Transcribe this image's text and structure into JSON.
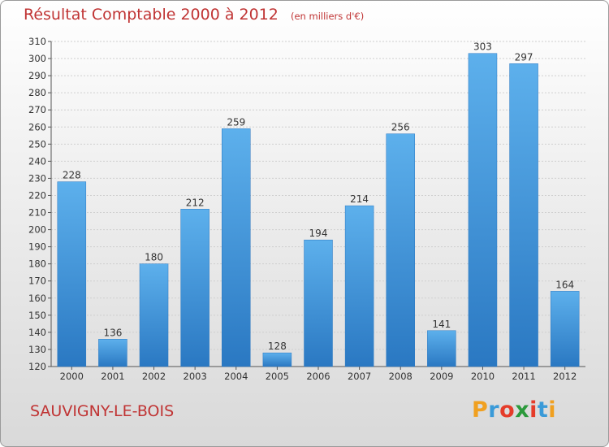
{
  "chart_data": {
    "type": "bar",
    "title": "Résultat Comptable 2000 à 2012",
    "unit_label": "(en milliers d'€)",
    "categories": [
      "2000",
      "2001",
      "2002",
      "2003",
      "2004",
      "2005",
      "2006",
      "2007",
      "2008",
      "2009",
      "2010",
      "2011",
      "2012"
    ],
    "values": [
      228,
      136,
      180,
      212,
      259,
      128,
      194,
      214,
      256,
      141,
      303,
      297,
      164
    ],
    "y_ticks": [
      120,
      130,
      140,
      150,
      160,
      170,
      180,
      190,
      200,
      210,
      220,
      230,
      240,
      250,
      260,
      270,
      280,
      290,
      300,
      310
    ],
    "ylim": [
      120,
      310
    ],
    "grid": true,
    "bar_color": "#3d8fd8",
    "bar_color_light": "#5db0ec",
    "bar_color_dark": "#2a78c2"
  },
  "commune": "SAUVIGNY-LE-BOIS",
  "logo": {
    "text": "Proxiti",
    "letters": [
      {
        "ch": "P",
        "color": "#f0a020"
      },
      {
        "ch": "r",
        "color": "#3a9ad8"
      },
      {
        "ch": "o",
        "color": "#e53c2a"
      },
      {
        "ch": "x",
        "color": "#2c9a3c"
      },
      {
        "ch": "i",
        "color": "#e53c2a"
      },
      {
        "ch": "t",
        "color": "#3a9ad8"
      },
      {
        "ch": "i",
        "color": "#f0a020"
      }
    ]
  }
}
